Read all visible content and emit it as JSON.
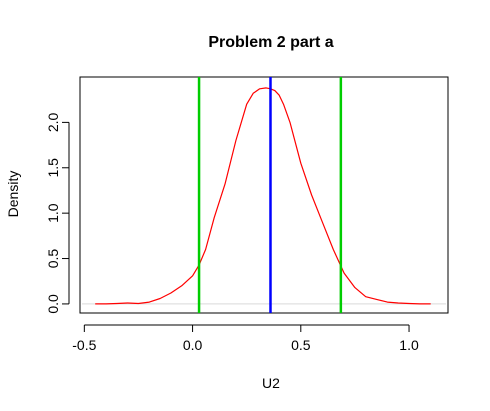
{
  "chart_data": {
    "type": "line",
    "title": "Problem 2 part a",
    "xlabel": "U2",
    "ylabel": "Density",
    "xlim": [
      -0.52,
      1.18
    ],
    "ylim": [
      -0.1,
      2.5
    ],
    "x_ticks": [
      -0.5,
      0.0,
      0.5,
      1.0
    ],
    "x_tick_labels": [
      "-0.5",
      "0.0",
      "0.5",
      "1.0"
    ],
    "y_ticks": [
      0.0,
      0.5,
      1.0,
      1.5,
      2.0
    ],
    "y_tick_labels": [
      "0.0",
      "0.5",
      "1.0",
      "1.5",
      "2.0"
    ],
    "grid": false,
    "baseline": 0.0,
    "series": [
      {
        "color": "#ff0000",
        "x": [
          -0.45,
          -0.4,
          -0.35,
          -0.3,
          -0.25,
          -0.2,
          -0.15,
          -0.1,
          -0.05,
          0.0,
          0.03,
          0.06,
          0.1,
          0.15,
          0.2,
          0.25,
          0.28,
          0.31,
          0.34,
          0.36,
          0.38,
          0.4,
          0.42,
          0.45,
          0.5,
          0.55,
          0.6,
          0.65,
          0.7,
          0.75,
          0.8,
          0.85,
          0.9,
          0.95,
          1.0,
          1.05,
          1.1
        ],
        "values": [
          0.0,
          0.0,
          0.005,
          0.01,
          0.005,
          0.02,
          0.06,
          0.12,
          0.2,
          0.31,
          0.43,
          0.6,
          0.95,
          1.32,
          1.8,
          2.2,
          2.32,
          2.37,
          2.38,
          2.37,
          2.35,
          2.3,
          2.2,
          2.0,
          1.55,
          1.2,
          0.9,
          0.6,
          0.34,
          0.18,
          0.08,
          0.05,
          0.02,
          0.01,
          0.005,
          0.0,
          0.0
        ]
      }
    ],
    "vlines": [
      {
        "x": 0.03,
        "color": "#00cd00"
      },
      {
        "x": 0.36,
        "color": "#0000ff"
      },
      {
        "x": 0.685,
        "color": "#00cd00"
      }
    ]
  }
}
